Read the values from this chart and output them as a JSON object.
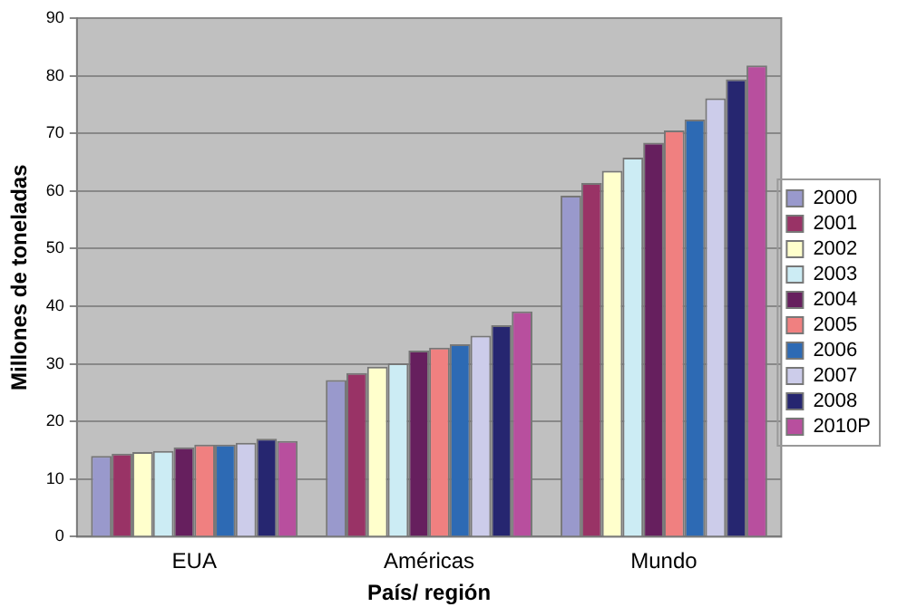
{
  "chart_data": {
    "type": "bar",
    "xlabel": "País/ región",
    "ylabel": "Millones de toneladas",
    "categories": [
      "EUA",
      "Américas",
      "Mundo"
    ],
    "series": [
      {
        "name": "2000",
        "color": "#9999cc",
        "values": [
          14.0,
          27.2,
          59.2
        ]
      },
      {
        "name": "2001",
        "color": "#993366",
        "values": [
          14.4,
          28.4,
          61.4
        ]
      },
      {
        "name": "2002",
        "color": "#ffffcc",
        "values": [
          14.7,
          29.5,
          63.5
        ]
      },
      {
        "name": "2003",
        "color": "#ccecf4",
        "values": [
          14.9,
          30.1,
          65.8
        ]
      },
      {
        "name": "2004",
        "color": "#661f5e",
        "values": [
          15.5,
          32.3,
          68.4
        ]
      },
      {
        "name": "2005",
        "color": "#f08080",
        "values": [
          16.0,
          32.8,
          70.5
        ]
      },
      {
        "name": "2006",
        "color": "#2d6ab4",
        "values": [
          16.0,
          33.4,
          72.4
        ]
      },
      {
        "name": "2007",
        "color": "#ccccea",
        "values": [
          16.3,
          34.9,
          76.1
        ]
      },
      {
        "name": "2008",
        "color": "#262670",
        "values": [
          17.0,
          36.7,
          79.4
        ]
      },
      {
        "name": "2010P",
        "color": "#b84f9e",
        "values": [
          16.6,
          39.1,
          81.8
        ]
      }
    ],
    "ylim": [
      0,
      90
    ],
    "yticks": [
      0,
      10,
      20,
      30,
      40,
      50,
      60,
      70,
      80,
      90
    ],
    "grid": "y",
    "legend": "right"
  }
}
